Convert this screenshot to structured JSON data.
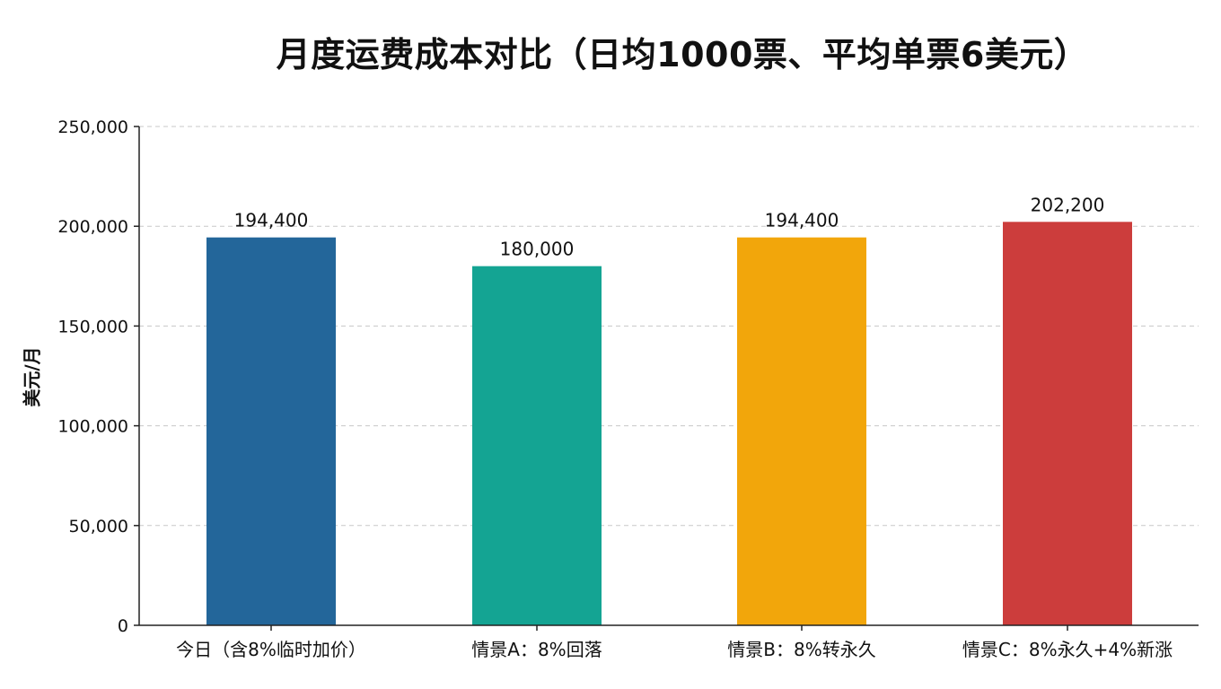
{
  "chart_data": {
    "type": "bar",
    "title": "月度运费成本对比（日均1000票、平均单票6美元）",
    "ylabel": "美元/月",
    "xlabel": "",
    "categories": [
      "今日（含8%临时加价）",
      "情景A：8%回落",
      "情景B：8%转永久",
      "情景C：8%永久+4%新涨"
    ],
    "values": [
      194400,
      180000,
      194400,
      202200
    ],
    "value_labels": [
      "194,400",
      "180,000",
      "194,400",
      "202,200"
    ],
    "colors": [
      "#23669a",
      "#14a493",
      "#f2a60b",
      "#cc3d3c"
    ],
    "ylim": [
      0,
      250000
    ],
    "yticks": [
      0,
      50000,
      100000,
      150000,
      200000,
      250000
    ],
    "ytick_labels": [
      "0",
      "50,000",
      "100,000",
      "150,000",
      "200,000",
      "250,000"
    ],
    "grid": true,
    "legend": "none"
  }
}
